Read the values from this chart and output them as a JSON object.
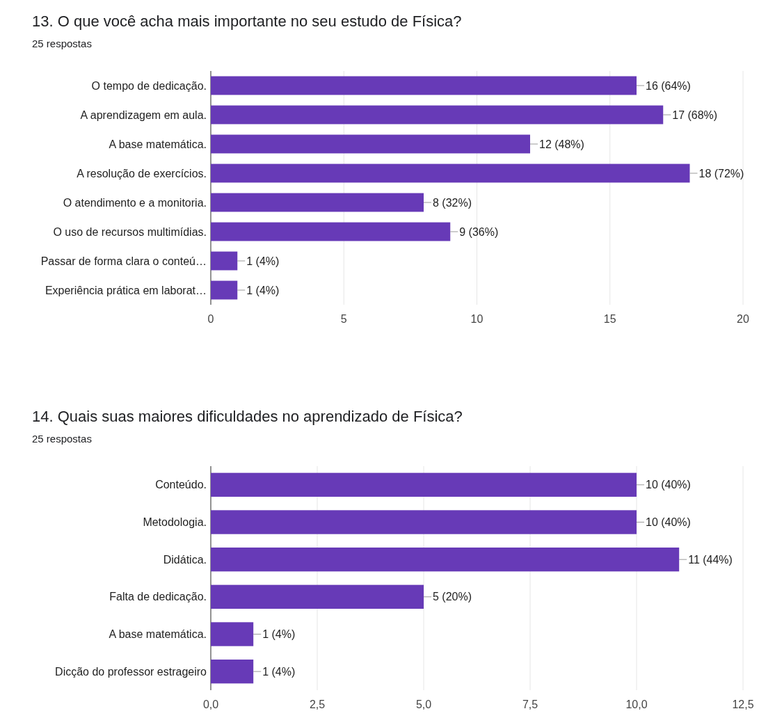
{
  "chart_data": [
    {
      "type": "bar",
      "orientation": "horizontal",
      "title": "13. O que você acha mais importante no seu estudo de Física?",
      "subtitle": "25 respostas",
      "categories": [
        "O tempo de dedicação.",
        "A aprendizagem em aula.",
        "A base matemática.",
        "A resolução de exercícios.",
        "O atendimento e a monitoria.",
        "O uso de recursos multimídias.",
        "Passar de forma clara o conteú…",
        "Experiência prática em laborat…"
      ],
      "values": [
        16,
        17,
        12,
        18,
        8,
        9,
        1,
        1
      ],
      "value_labels": [
        "16 (64%)",
        "17 (68%)",
        "12 (48%)",
        "18 (72%)",
        "8 (32%)",
        "9 (36%)",
        "1 (4%)",
        "1 (4%)"
      ],
      "color": "#673ab7",
      "xlim": [
        0,
        20
      ],
      "xticks": [
        0,
        5,
        10,
        15,
        20
      ],
      "grid": "x"
    },
    {
      "type": "bar",
      "orientation": "horizontal",
      "title": "14. Quais suas maiores dificuldades no aprendizado de Física?",
      "subtitle": "25 respostas",
      "categories": [
        "Conteúdo.",
        "Metodologia.",
        "Didática.",
        "Falta de dedicação.",
        "A base matemática.",
        "Dicção do professor estrageiro"
      ],
      "values": [
        10,
        10,
        11,
        5,
        1,
        1
      ],
      "value_labels": [
        "10 (40%)",
        "10 (40%)",
        "11 (44%)",
        "5 (20%)",
        "1 (4%)",
        "1 (4%)"
      ],
      "color": "#673ab7",
      "xlim": [
        0,
        12.5
      ],
      "xticks": [
        {
          "value": 0,
          "label": "0,0"
        },
        {
          "value": 2.5,
          "label": "2,5"
        },
        {
          "value": 5,
          "label": "5,0"
        },
        {
          "value": 7.5,
          "label": "7,5"
        },
        {
          "value": 10,
          "label": "10,0"
        },
        {
          "value": 12.5,
          "label": "12,5"
        }
      ],
      "grid": "x"
    }
  ]
}
